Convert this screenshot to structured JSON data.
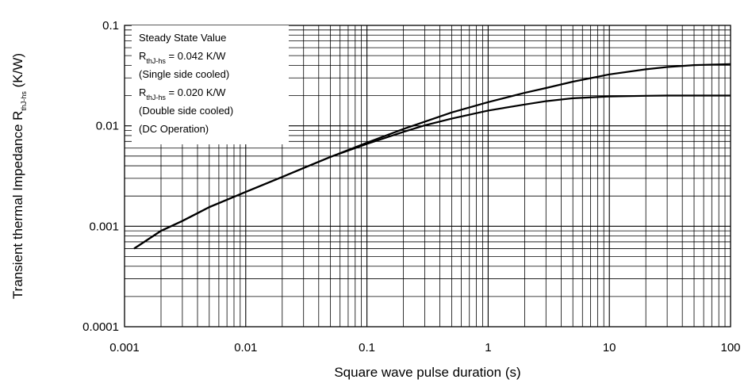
{
  "chart_data": {
    "type": "line",
    "title": "",
    "xlabel": "Square wave pulse duration (s)",
    "ylabel": {
      "prefix": "Transient thermal Impedance R",
      "sub": "thJ-hs",
      "suffix": " (K/W)"
    },
    "x_scale": "log",
    "y_scale": "log",
    "xlim": [
      0.001,
      100
    ],
    "ylim": [
      0.0001,
      0.1
    ],
    "x_ticks": [
      {
        "value": 0.001,
        "label": "0.001"
      },
      {
        "value": 0.01,
        "label": "0.01"
      },
      {
        "value": 0.1,
        "label": "0.1"
      },
      {
        "value": 1,
        "label": "1"
      },
      {
        "value": 10,
        "label": "10"
      },
      {
        "value": 100,
        "label": "100"
      }
    ],
    "y_ticks": [
      {
        "value": 0.0001,
        "label": "0.0001"
      },
      {
        "value": 0.001,
        "label": "0.001"
      },
      {
        "value": 0.01,
        "label": "0.01"
      },
      {
        "value": 0.1,
        "label": "0.1"
      }
    ],
    "grid": true,
    "annotation": [
      {
        "text": "Steady State Value"
      },
      {
        "text": "R",
        "sub": "thJ-hs",
        "after": " = 0.042 K/W"
      },
      {
        "text": "(Single side cooled)"
      },
      {
        "text": "R",
        "sub": "thJ-hs",
        "after": " = 0.020 K/W"
      },
      {
        "text": "(Double side cooled)"
      },
      {
        "text": "(DC Operation)"
      }
    ],
    "legend_position": "top-left",
    "series": [
      {
        "x": [
          0.0012,
          0.002,
          0.003,
          0.005,
          0.01,
          0.02,
          0.03,
          0.05,
          0.1,
          0.2,
          0.3,
          0.5,
          1,
          2,
          3,
          5,
          10,
          20,
          30,
          50,
          100
        ],
        "y": [
          0.0006,
          0.0009,
          0.00113,
          0.00155,
          0.0022,
          0.0031,
          0.0038,
          0.0049,
          0.0068,
          0.0093,
          0.011,
          0.0136,
          0.0172,
          0.0213,
          0.0238,
          0.0275,
          0.0325,
          0.0365,
          0.0385,
          0.0402,
          0.0412
        ]
      },
      {
        "x": [
          0.0012,
          0.002,
          0.003,
          0.005,
          0.01,
          0.02,
          0.03,
          0.05,
          0.1,
          0.2,
          0.3,
          0.5,
          1,
          2,
          3,
          5,
          10,
          20,
          30,
          50,
          100
        ],
        "y": [
          0.0006,
          0.0009,
          0.00113,
          0.00155,
          0.0022,
          0.0031,
          0.0038,
          0.0049,
          0.0066,
          0.0087,
          0.0101,
          0.0118,
          0.0142,
          0.0163,
          0.0176,
          0.0188,
          0.0196,
          0.0199,
          0.02,
          0.02,
          0.02
        ]
      }
    ]
  }
}
